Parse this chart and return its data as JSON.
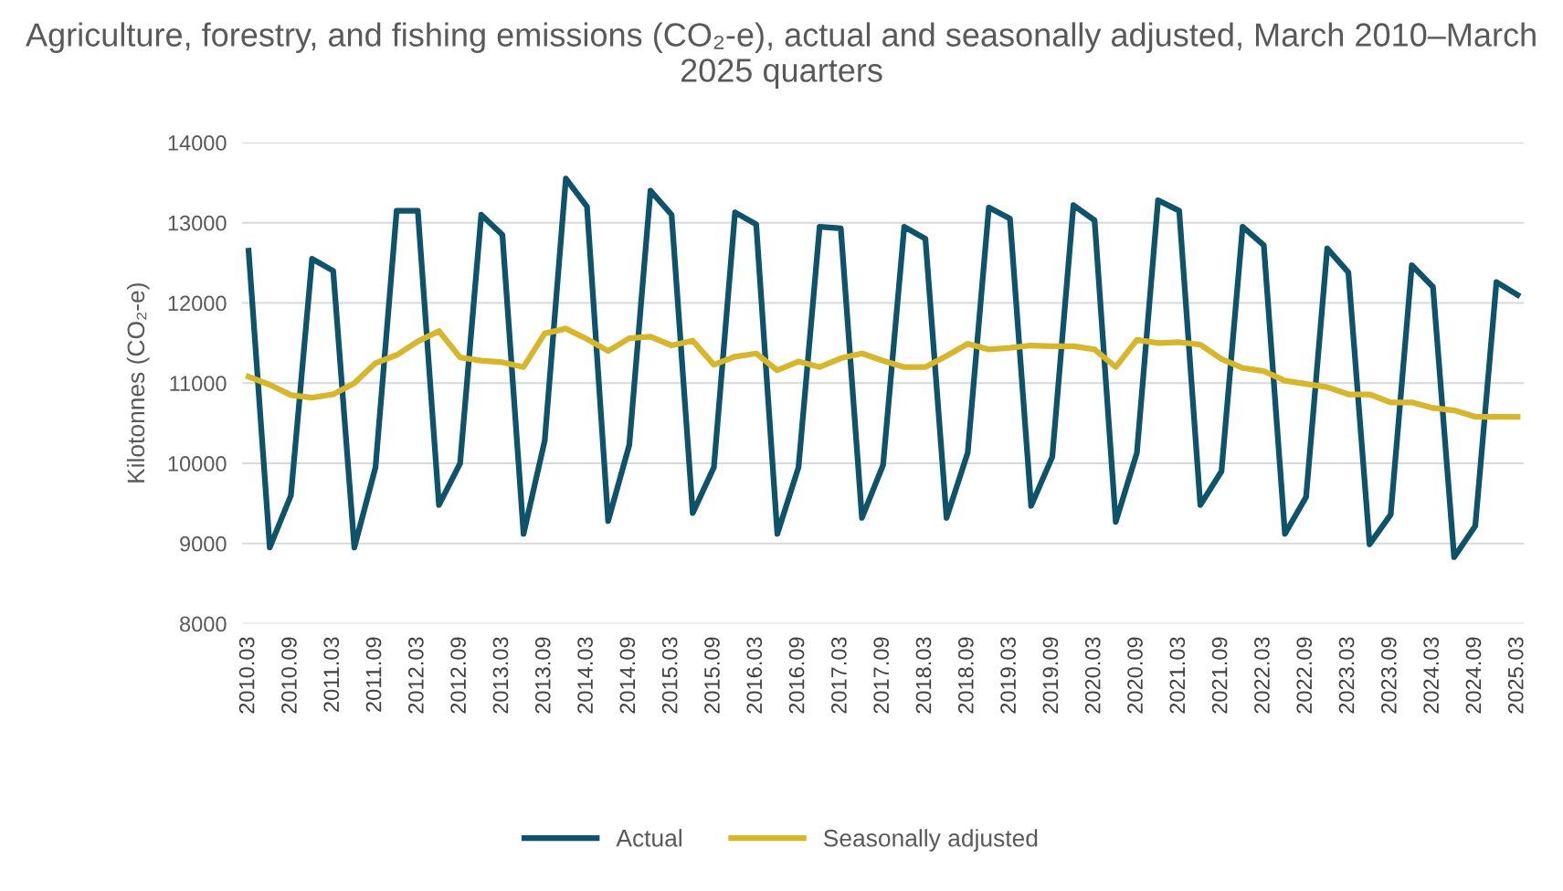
{
  "chart_data": {
    "type": "line",
    "title": "Agriculture, forestry, and fishing emissions (CO₂-e), actual and seasonally adjusted, March 2010–March 2025 quarters",
    "ylabel": "Kilotonnes (CO₂-e)",
    "categories": [
      "2010.03",
      null,
      "2010.09",
      null,
      "2011.03",
      null,
      "2011.09",
      null,
      "2012.03",
      null,
      "2012.09",
      null,
      "2013.03",
      null,
      "2013.09",
      null,
      "2014.03",
      null,
      "2014.09",
      null,
      "2015.03",
      null,
      "2015.09",
      null,
      "2016.03",
      null,
      "2016.09",
      null,
      "2017.03",
      null,
      "2017.09",
      null,
      "2018.03",
      null,
      "2018.09",
      null,
      "2019.03",
      null,
      "2019.09",
      null,
      "2020.03",
      null,
      "2020.09",
      null,
      "2021.03",
      null,
      "2021.09",
      null,
      "2022.03",
      null,
      "2022.09",
      null,
      "2023.03",
      null,
      "2023.09",
      null,
      "2024.03",
      null,
      "2024.09",
      null,
      "2025.03"
    ],
    "series": [
      {
        "name": "Actual",
        "color": "#0e5369",
        "values": [
          12650,
          8950,
          9600,
          12550,
          12400,
          8950,
          9950,
          13150,
          13150,
          9480,
          10000,
          13100,
          12850,
          9120,
          10280,
          13550,
          13200,
          9280,
          10230,
          13400,
          13100,
          9380,
          9950,
          13130,
          12980,
          9120,
          9950,
          12950,
          12930,
          9320,
          9980,
          12950,
          12800,
          9320,
          10130,
          13190,
          13050,
          9470,
          10080,
          13220,
          13030,
          9270,
          10130,
          13280,
          13150,
          9480,
          9900,
          12950,
          12720,
          9120,
          9580,
          12680,
          12380,
          8990,
          9360,
          12470,
          12200,
          8830,
          9220,
          12260,
          12100
        ]
      },
      {
        "name": "Seasonally adjusted",
        "color": "#d6b62c",
        "values": [
          11080,
          10980,
          10850,
          10820,
          10860,
          11000,
          11250,
          11350,
          11520,
          11650,
          11320,
          11280,
          11260,
          11200,
          11620,
          11680,
          11550,
          11400,
          11560,
          11580,
          11470,
          11530,
          11230,
          11330,
          11370,
          11160,
          11270,
          11200,
          11310,
          11370,
          11280,
          11200,
          11200,
          11340,
          11490,
          11420,
          11440,
          11470,
          11460,
          11460,
          11420,
          11200,
          11540,
          11500,
          11510,
          11480,
          11300,
          11190,
          11150,
          11030,
          10990,
          10950,
          10860,
          10860,
          10760,
          10760,
          10690,
          10660,
          10580,
          10580,
          10580
        ]
      }
    ],
    "ylim": [
      8000,
      14000
    ],
    "yticks": [
      8000,
      9000,
      10000,
      11000,
      12000,
      13000,
      14000
    ],
    "grid": "y",
    "legend": "bottom",
    "marker": "none",
    "line_style": "solid"
  }
}
